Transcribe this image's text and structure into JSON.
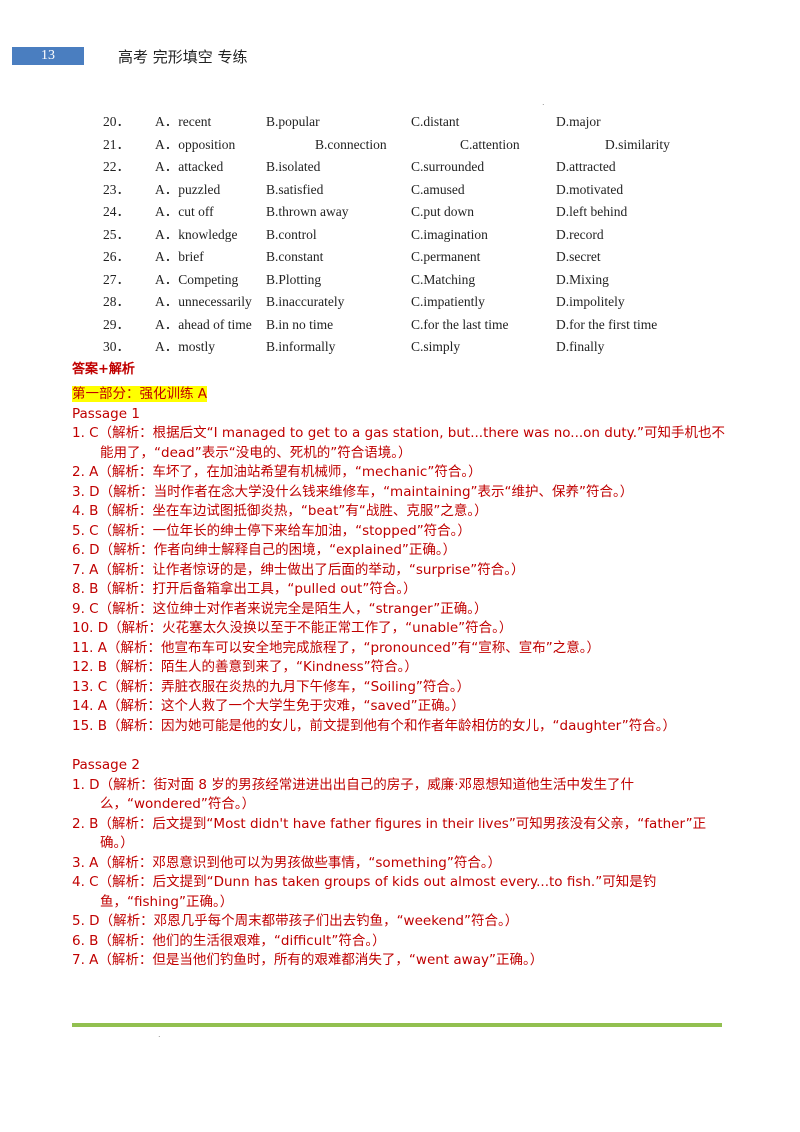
{
  "header": {
    "page_number": "13",
    "title": "高考 完形填空 专练"
  },
  "options": [
    {
      "num": "20．",
      "a": "A．recent",
      "b": "B.popular",
      "c": "C.distant",
      "d": "D.major"
    },
    {
      "num": "21．",
      "a": "A．opposition",
      "b": "B.connection",
      "c": "C.attention",
      "d": "D.similarity"
    },
    {
      "num": "22．",
      "a": "A．attacked",
      "b": "B.isolated",
      "c": "C.surrounded",
      "d": "D.attracted"
    },
    {
      "num": "23．",
      "a": "A．puzzled",
      "b": "B.satisfied",
      "c": "C.amused",
      "d": "D.motivated"
    },
    {
      "num": "24．",
      "a": "A．cut off",
      "b": "B.thrown away",
      "c": "C.put down",
      "d": "D.left behind"
    },
    {
      "num": "25．",
      "a": "A．knowledge",
      "b": "B.control",
      "c": "C.imagination",
      "d": "D.record"
    },
    {
      "num": "26．",
      "a": "A．brief",
      "b": "B.constant",
      "c": "C.permanent",
      "d": "D.secret"
    },
    {
      "num": "27．",
      "a": "A．Competing",
      "b": "B.Plotting",
      "c": "C.Matching",
      "d": "D.Mixing"
    },
    {
      "num": "28．",
      "a": "A．unnecessarily",
      "b": "B.inaccurately",
      "c": "C.impatiently",
      "d": "D.impolitely"
    },
    {
      "num": "29．",
      "a": "A．ahead of time",
      "b": "B.in no time",
      "c": "C.for the last time",
      "d": "D.for the first time"
    },
    {
      "num": "30．",
      "a": "A．mostly",
      "b": "B.informally",
      "c": "C.simply",
      "d": "D.finally"
    }
  ],
  "answers_heading": "答案+解析",
  "section_title": "第一部分：强化训练 A",
  "passage1": {
    "title": "Passage 1",
    "items": [
      "1. C（解析：根据后文“I managed to get to a gas station, but...there was no...on duty.”可知手机也不能用了，“dead”表示“没电的、死机的”符合语境。）",
      "2. A（解析：车坏了，在加油站希望有机械师，“mechanic”符合。）",
      "3. D（解析：当时作者在念大学没什么钱来维修车，“maintaining”表示“维护、保养”符合。）",
      "4. B（解析：坐在车边试图抵御炎热，“beat”有“战胜、克服”之意。）",
      "5. C（解析：一位年长的绅士停下来给车加油，“stopped”符合。）",
      "6. D（解析：作者向绅士解释自己的困境，“explained”正确。）",
      "7. A（解析：让作者惊讶的是，绅士做出了后面的举动，“surprise”符合。）",
      "8. B（解析：打开后备箱拿出工具，“pulled out”符合。）",
      "9. C（解析：这位绅士对作者来说完全是陌生人，“stranger”正确。）",
      "10. D（解析：火花塞太久没换以至于不能正常工作了，“unable”符合。）",
      "11. A（解析：他宣布车可以安全地完成旅程了，“pronounced”有“宣称、宣布”之意。）",
      "12. B（解析：陌生人的善意到来了，“Kindness”符合。）",
      "13. C（解析：弄脏衣服在炎热的九月下午修车，“Soiling”符合。）",
      "14. A（解析：这个人救了一个大学生免于灾难，“saved”正确。）",
      "15. B（解析：因为她可能是他的女儿，前文提到他有个和作者年龄相仿的女儿，“daughter”符合。）"
    ]
  },
  "passage2": {
    "title": "Passage 2",
    "items": [
      "1. D（解析：街对面 8 岁的男孩经常进进出出自己的房子，威廉·邓恩想知道他生活中发生了什么，“wondered”符合。）",
      "2. B（解析：后文提到“Most didn't have father figures in their lives”可知男孩没有父亲，“father”正确。）",
      "3. A（解析：邓恩意识到他可以为男孩做些事情，“something”符合。）",
      "4. C（解析：后文提到“Dunn has taken groups of kids out almost every...to fish.”可知是钓鱼，“fishing”正确。）",
      "5. D（解析：邓恩几乎每个周末都带孩子们出去钓鱼，“weekend”符合。）",
      "6. B（解析：他们的生活很艰难，“difficult”符合。）",
      "7. A（解析：但是当他们钓鱼时，所有的艰难都消失了，“went away”正确。）"
    ]
  }
}
